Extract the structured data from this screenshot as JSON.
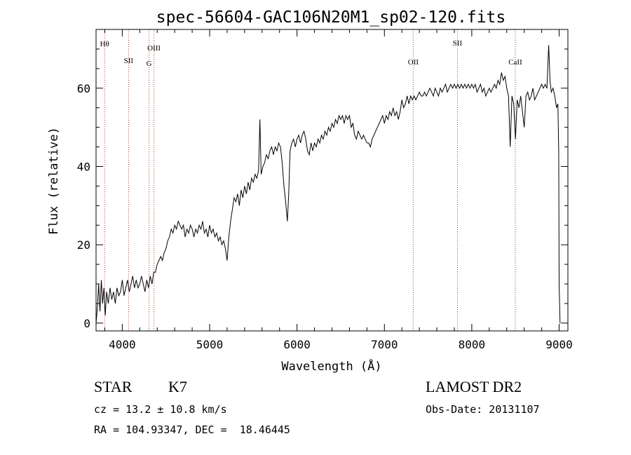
{
  "chart_data": {
    "type": "line",
    "title": "spec-56604-GAC106N20M1_sp02-120.fits",
    "xlabel": "Wavelength (Å)",
    "ylabel": "Flux (relative)",
    "xlim": [
      3700,
      9100
    ],
    "ylim": [
      -2,
      75
    ],
    "xticks": [
      4000,
      5000,
      6000,
      7000,
      8000,
      9000
    ],
    "yticks": [
      0,
      20,
      40,
      60
    ],
    "x_minor_step": 200,
    "y_minor_step": 5,
    "line_color": "#000000",
    "marker_color": "#c0392b",
    "spectral_lines": [
      {
        "name": "Hθ",
        "wavelength": 3798
      },
      {
        "name": "SII",
        "wavelength": 4072
      },
      {
        "name": "OIII",
        "wavelength": 4363
      },
      {
        "name": "G",
        "wavelength": 4307
      },
      {
        "name": "OII",
        "wavelength": 7330
      },
      {
        "name": "SII",
        "wavelength": 7836
      },
      {
        "name": "CaII",
        "wavelength": 8498
      }
    ],
    "series": [
      {
        "values": [
          [
            3700,
            0
          ],
          [
            3715,
            4
          ],
          [
            3730,
            10
          ],
          [
            3745,
            3
          ],
          [
            3760,
            11
          ],
          [
            3775,
            5
          ],
          [
            3790,
            9
          ],
          [
            3805,
            2
          ],
          [
            3820,
            8
          ],
          [
            3840,
            5
          ],
          [
            3860,
            9
          ],
          [
            3880,
            6
          ],
          [
            3900,
            8
          ],
          [
            3920,
            5
          ],
          [
            3940,
            9
          ],
          [
            3960,
            7
          ],
          [
            3980,
            8
          ],
          [
            4000,
            11
          ],
          [
            4020,
            7
          ],
          [
            4040,
            9
          ],
          [
            4060,
            11
          ],
          [
            4080,
            8
          ],
          [
            4100,
            10
          ],
          [
            4120,
            12
          ],
          [
            4140,
            9
          ],
          [
            4160,
            11
          ],
          [
            4180,
            9
          ],
          [
            4200,
            10
          ],
          [
            4220,
            12
          ],
          [
            4240,
            10
          ],
          [
            4260,
            8
          ],
          [
            4280,
            11
          ],
          [
            4300,
            9
          ],
          [
            4320,
            12
          ],
          [
            4340,
            10
          ],
          [
            4360,
            13
          ],
          [
            4380,
            13
          ],
          [
            4400,
            15
          ],
          [
            4420,
            16
          ],
          [
            4440,
            17
          ],
          [
            4460,
            16
          ],
          [
            4480,
            18
          ],
          [
            4500,
            19
          ],
          [
            4520,
            21
          ],
          [
            4540,
            22
          ],
          [
            4560,
            24
          ],
          [
            4580,
            23
          ],
          [
            4600,
            25
          ],
          [
            4620,
            24
          ],
          [
            4640,
            26
          ],
          [
            4660,
            25
          ],
          [
            4680,
            24
          ],
          [
            4700,
            25
          ],
          [
            4720,
            22
          ],
          [
            4740,
            24
          ],
          [
            4760,
            23
          ],
          [
            4780,
            25
          ],
          [
            4800,
            24
          ],
          [
            4820,
            22
          ],
          [
            4840,
            24
          ],
          [
            4860,
            23
          ],
          [
            4880,
            25
          ],
          [
            4900,
            24
          ],
          [
            4920,
            26
          ],
          [
            4940,
            23
          ],
          [
            4960,
            24
          ],
          [
            4980,
            22
          ],
          [
            5000,
            25
          ],
          [
            5020,
            23
          ],
          [
            5040,
            24
          ],
          [
            5060,
            22
          ],
          [
            5080,
            23
          ],
          [
            5100,
            21
          ],
          [
            5120,
            22
          ],
          [
            5140,
            20
          ],
          [
            5160,
            21
          ],
          [
            5180,
            19
          ],
          [
            5200,
            16
          ],
          [
            5220,
            22
          ],
          [
            5240,
            26
          ],
          [
            5260,
            29
          ],
          [
            5280,
            32
          ],
          [
            5300,
            31
          ],
          [
            5320,
            33
          ],
          [
            5340,
            30
          ],
          [
            5360,
            34
          ],
          [
            5380,
            32
          ],
          [
            5400,
            35
          ],
          [
            5420,
            33
          ],
          [
            5440,
            36
          ],
          [
            5460,
            34
          ],
          [
            5480,
            37
          ],
          [
            5500,
            36
          ],
          [
            5520,
            38
          ],
          [
            5540,
            37
          ],
          [
            5560,
            39
          ],
          [
            5575,
            52
          ],
          [
            5590,
            38
          ],
          [
            5610,
            40
          ],
          [
            5630,
            41
          ],
          [
            5650,
            43
          ],
          [
            5670,
            42
          ],
          [
            5690,
            44
          ],
          [
            5710,
            45
          ],
          [
            5730,
            43
          ],
          [
            5750,
            45
          ],
          [
            5770,
            44
          ],
          [
            5790,
            46
          ],
          [
            5810,
            45
          ],
          [
            5830,
            41
          ],
          [
            5850,
            35
          ],
          [
            5870,
            31
          ],
          [
            5890,
            26
          ],
          [
            5905,
            33
          ],
          [
            5920,
            44
          ],
          [
            5940,
            46
          ],
          [
            5960,
            47
          ],
          [
            5980,
            45
          ],
          [
            6000,
            47
          ],
          [
            6020,
            48
          ],
          [
            6040,
            46
          ],
          [
            6060,
            48
          ],
          [
            6080,
            49
          ],
          [
            6100,
            47
          ],
          [
            6120,
            44
          ],
          [
            6140,
            43
          ],
          [
            6160,
            46
          ],
          [
            6180,
            44
          ],
          [
            6200,
            46
          ],
          [
            6220,
            45
          ],
          [
            6240,
            47
          ],
          [
            6260,
            46
          ],
          [
            6280,
            48
          ],
          [
            6300,
            47
          ],
          [
            6320,
            49
          ],
          [
            6340,
            48
          ],
          [
            6360,
            50
          ],
          [
            6380,
            49
          ],
          [
            6400,
            51
          ],
          [
            6420,
            50
          ],
          [
            6440,
            52
          ],
          [
            6460,
            51
          ],
          [
            6480,
            53
          ],
          [
            6500,
            52
          ],
          [
            6520,
            53
          ],
          [
            6540,
            51
          ],
          [
            6560,
            53
          ],
          [
            6580,
            52
          ],
          [
            6600,
            53
          ],
          [
            6620,
            50
          ],
          [
            6640,
            51
          ],
          [
            6660,
            48
          ],
          [
            6680,
            47
          ],
          [
            6700,
            49
          ],
          [
            6720,
            48
          ],
          [
            6740,
            47
          ],
          [
            6760,
            48
          ],
          [
            6780,
            47
          ],
          [
            6800,
            46
          ],
          [
            6820,
            46
          ],
          [
            6840,
            45
          ],
          [
            6860,
            47
          ],
          [
            6880,
            48
          ],
          [
            6900,
            49
          ],
          [
            6920,
            50
          ],
          [
            6940,
            51
          ],
          [
            6960,
            52
          ],
          [
            6980,
            53
          ],
          [
            7000,
            51
          ],
          [
            7020,
            53
          ],
          [
            7040,
            52
          ],
          [
            7060,
            54
          ],
          [
            7080,
            53
          ],
          [
            7100,
            55
          ],
          [
            7120,
            53
          ],
          [
            7140,
            54
          ],
          [
            7160,
            52
          ],
          [
            7180,
            54
          ],
          [
            7200,
            57
          ],
          [
            7220,
            55
          ],
          [
            7240,
            56
          ],
          [
            7260,
            58
          ],
          [
            7280,
            56
          ],
          [
            7300,
            58
          ],
          [
            7320,
            57
          ],
          [
            7340,
            58
          ],
          [
            7360,
            57
          ],
          [
            7380,
            58
          ],
          [
            7400,
            59
          ],
          [
            7420,
            58
          ],
          [
            7440,
            58
          ],
          [
            7460,
            59
          ],
          [
            7480,
            58
          ],
          [
            7500,
            59
          ],
          [
            7520,
            60
          ],
          [
            7540,
            59
          ],
          [
            7560,
            58
          ],
          [
            7580,
            60
          ],
          [
            7600,
            59
          ],
          [
            7620,
            58
          ],
          [
            7640,
            60
          ],
          [
            7660,
            59
          ],
          [
            7680,
            60
          ],
          [
            7700,
            61
          ],
          [
            7720,
            59
          ],
          [
            7740,
            60
          ],
          [
            7760,
            61
          ],
          [
            7780,
            60
          ],
          [
            7800,
            61
          ],
          [
            7820,
            60
          ],
          [
            7840,
            61
          ],
          [
            7860,
            60
          ],
          [
            7880,
            61
          ],
          [
            7900,
            60
          ],
          [
            7920,
            61
          ],
          [
            7940,
            60
          ],
          [
            7960,
            61
          ],
          [
            7980,
            60
          ],
          [
            8000,
            61
          ],
          [
            8020,
            60
          ],
          [
            8040,
            61
          ],
          [
            8060,
            59
          ],
          [
            8080,
            60
          ],
          [
            8100,
            61
          ],
          [
            8120,
            59
          ],
          [
            8140,
            60
          ],
          [
            8160,
            58
          ],
          [
            8180,
            59
          ],
          [
            8200,
            60
          ],
          [
            8220,
            59
          ],
          [
            8240,
            60
          ],
          [
            8260,
            61
          ],
          [
            8280,
            60
          ],
          [
            8300,
            62
          ],
          [
            8320,
            61
          ],
          [
            8340,
            64
          ],
          [
            8360,
            62
          ],
          [
            8380,
            63
          ],
          [
            8400,
            60
          ],
          [
            8420,
            58
          ],
          [
            8440,
            45
          ],
          [
            8460,
            58
          ],
          [
            8480,
            56
          ],
          [
            8500,
            47
          ],
          [
            8520,
            57
          ],
          [
            8540,
            55
          ],
          [
            8560,
            58
          ],
          [
            8580,
            54
          ],
          [
            8600,
            50
          ],
          [
            8620,
            58
          ],
          [
            8640,
            59
          ],
          [
            8660,
            57
          ],
          [
            8680,
            58
          ],
          [
            8700,
            60
          ],
          [
            8720,
            57
          ],
          [
            8740,
            58
          ],
          [
            8760,
            59
          ],
          [
            8780,
            60
          ],
          [
            8800,
            61
          ],
          [
            8820,
            60
          ],
          [
            8840,
            61
          ],
          [
            8860,
            60
          ],
          [
            8880,
            71
          ],
          [
            8895,
            62
          ],
          [
            8910,
            59
          ],
          [
            8930,
            60
          ],
          [
            8950,
            58
          ],
          [
            8970,
            55
          ],
          [
            8985,
            56
          ],
          [
            8995,
            44
          ],
          [
            9000,
            10
          ],
          [
            9010,
            0
          ]
        ]
      }
    ]
  },
  "info": {
    "object_class": "STAR",
    "subclass": "K7",
    "redshift": "cz = 13.2 ± 10.8 km/s",
    "coords": "RA = 104.93347, DEC =  18.46445",
    "survey": "LAMOST DR2",
    "obs_date": "Obs-Date: 20131107"
  }
}
